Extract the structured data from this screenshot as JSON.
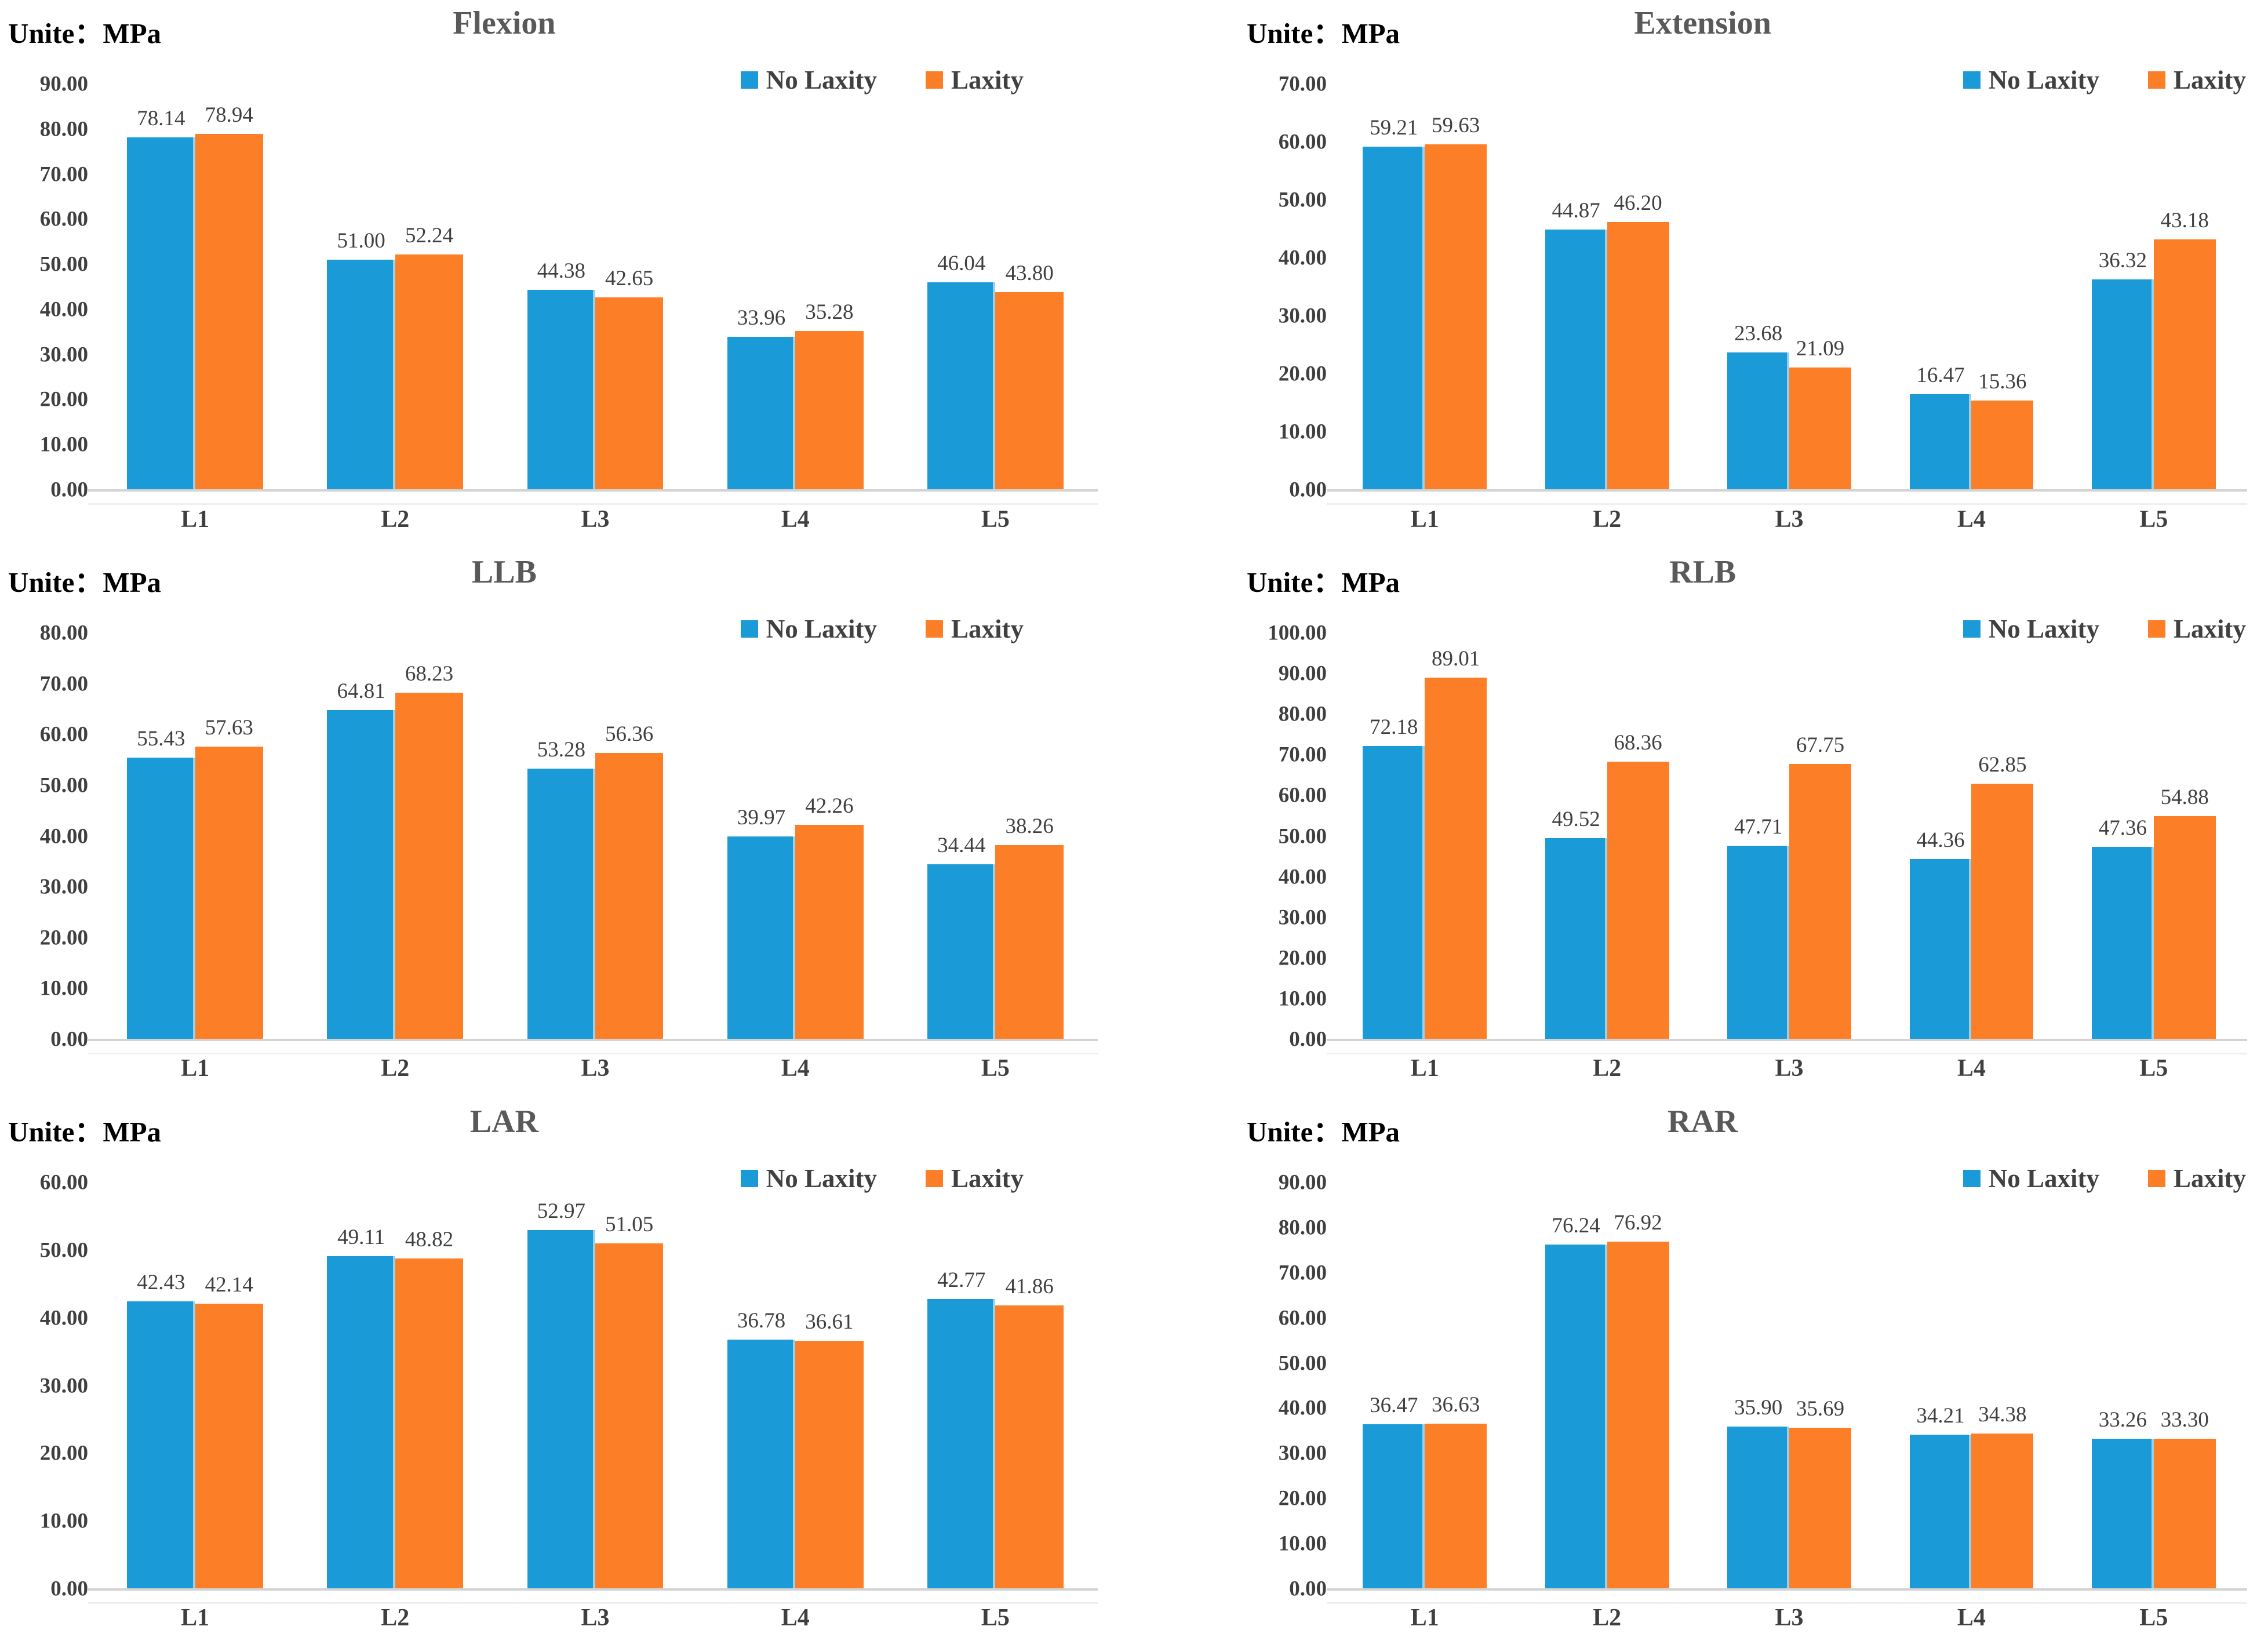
{
  "page": {
    "background": "#FFFFFF"
  },
  "colors": {
    "no_laxity": "#1A9AD6",
    "laxity": "#FC7E26",
    "title_text": "#595959",
    "label_text": "#3F3F3F",
    "unit_text": "#000000",
    "axis_line": "#D3D3D3"
  },
  "series_colors": {
    "No Laxity": "#1A9AD6",
    "Laxity": "#FC7E26"
  },
  "legend": {
    "items": [
      {
        "label": "No Laxity"
      },
      {
        "label": "Laxity"
      }
    ]
  },
  "chart_data": [
    {
      "type": "bar",
      "title": "Flexion",
      "unit_label": "Unite：MPa",
      "categories": [
        "L1",
        "L2",
        "L3",
        "L4",
        "L5"
      ],
      "series": [
        {
          "name": "No Laxity",
          "values": [
            78.14,
            51.0,
            44.38,
            33.96,
            46.04
          ]
        },
        {
          "name": "Laxity",
          "values": [
            78.94,
            52.24,
            42.65,
            35.28,
            43.8
          ]
        }
      ],
      "ylim": [
        0,
        90
      ],
      "ytick_step": 10,
      "grid": false,
      "legend_position": "top-right",
      "value_label_format": "2dp",
      "tick_label_format": "2dp"
    },
    {
      "type": "bar",
      "title": "Extension",
      "unit_label": "Unite：MPa",
      "categories": [
        "L1",
        "L2",
        "L3",
        "L4",
        "L5"
      ],
      "series": [
        {
          "name": "No Laxity",
          "values": [
            59.21,
            44.87,
            23.68,
            16.47,
            36.32
          ]
        },
        {
          "name": "Laxity",
          "values": [
            59.63,
            46.2,
            21.09,
            15.36,
            43.18
          ]
        }
      ],
      "ylim": [
        0,
        70
      ],
      "ytick_step": 10,
      "grid": false,
      "legend_position": "top-right",
      "value_label_format": "2dp",
      "tick_label_format": "2dp"
    },
    {
      "type": "bar",
      "title": "LLB",
      "unit_label": "Unite：MPa",
      "categories": [
        "L1",
        "L2",
        "L3",
        "L4",
        "L5"
      ],
      "series": [
        {
          "name": "No Laxity",
          "values": [
            55.43,
            64.81,
            53.28,
            39.97,
            34.44
          ]
        },
        {
          "name": "Laxity",
          "values": [
            57.63,
            68.23,
            56.36,
            42.26,
            38.26
          ]
        }
      ],
      "ylim": [
        0,
        80
      ],
      "ytick_step": 10,
      "grid": false,
      "legend_position": "top-right",
      "value_label_format": "2dp",
      "tick_label_format": "2dp"
    },
    {
      "type": "bar",
      "title": "RLB",
      "unit_label": "Unite：MPa",
      "categories": [
        "L1",
        "L2",
        "L3",
        "L4",
        "L5"
      ],
      "series": [
        {
          "name": "No Laxity",
          "values": [
            72.18,
            49.52,
            47.71,
            44.36,
            47.36
          ]
        },
        {
          "name": "Laxity",
          "values": [
            89.01,
            68.36,
            67.75,
            62.85,
            54.88
          ]
        }
      ],
      "ylim": [
        0,
        100
      ],
      "ytick_step": 10,
      "grid": false,
      "legend_position": "top-right",
      "value_label_format": "2dp",
      "tick_label_format": "2dp"
    },
    {
      "type": "bar",
      "title": "LAR",
      "unit_label": "Unite：MPa",
      "categories": [
        "L1",
        "L2",
        "L3",
        "L4",
        "L5"
      ],
      "series": [
        {
          "name": "No Laxity",
          "values": [
            42.43,
            49.11,
            52.97,
            36.78,
            42.77
          ]
        },
        {
          "name": "Laxity",
          "values": [
            42.14,
            48.82,
            51.05,
            36.61,
            41.86
          ]
        }
      ],
      "ylim": [
        0,
        60
      ],
      "ytick_step": 10,
      "grid": false,
      "legend_position": "top-right",
      "value_label_format": "2dp",
      "tick_label_format": "2dp"
    },
    {
      "type": "bar",
      "title": "RAR",
      "unit_label": "Unite：MPa",
      "categories": [
        "L1",
        "L2",
        "L3",
        "L4",
        "L5"
      ],
      "series": [
        {
          "name": "No Laxity",
          "values": [
            36.47,
            76.24,
            35.9,
            34.21,
            33.26
          ]
        },
        {
          "name": "Laxity",
          "values": [
            36.63,
            76.92,
            35.69,
            34.38,
            33.3
          ]
        }
      ],
      "ylim": [
        0,
        90
      ],
      "ytick_step": 10,
      "grid": false,
      "legend_position": "top-right",
      "value_label_format": "2dp",
      "tick_label_format": "2dp"
    }
  ]
}
